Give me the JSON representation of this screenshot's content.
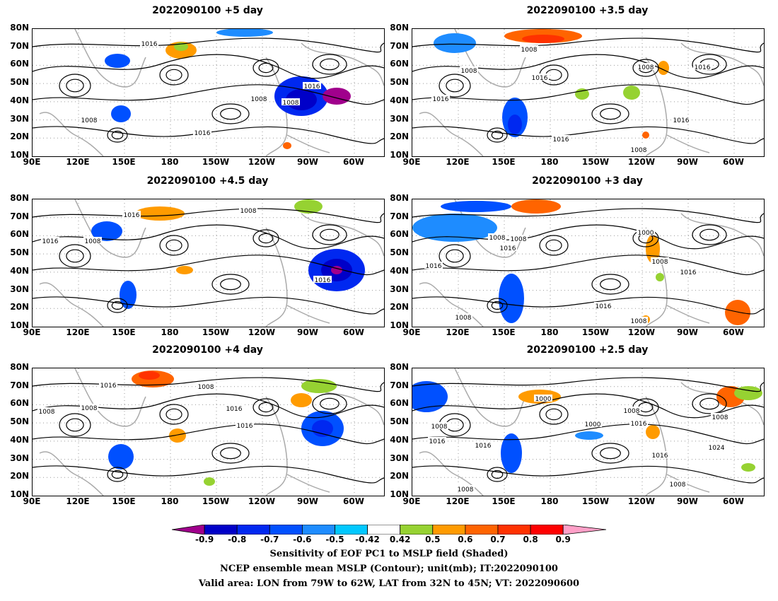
{
  "panels": [
    {
      "title": "2022090100 +5 day",
      "contour_labels": [
        "1016",
        "1008",
        "1008",
        "1016",
        "1016",
        "1008"
      ]
    },
    {
      "title": "2022090100 +3.5 day",
      "contour_labels": [
        "1008",
        "1008",
        "1016",
        "1008",
        "1016",
        "1016",
        "1016",
        "1016",
        "1008"
      ]
    },
    {
      "title": "2022090100 +4.5 day",
      "contour_labels": [
        "1016",
        "1008",
        "1008",
        "1016",
        "1016"
      ]
    },
    {
      "title": "2022090100 +3 day",
      "contour_labels": [
        "1008",
        "1016",
        "1000",
        "1016",
        "1008",
        "1008",
        "1016",
        "1016",
        "1008",
        "1008"
      ]
    },
    {
      "title": "2022090100 +4 day",
      "contour_labels": [
        "1016",
        "1008",
        "1008",
        "1008",
        "1016",
        "1016"
      ]
    },
    {
      "title": "2022090100 +2.5 day",
      "contour_labels": [
        "1000",
        "1008",
        "1000",
        "1016",
        "1008",
        "1016",
        "1008",
        "1016",
        "1024",
        "1016",
        "1008",
        "1008"
      ]
    }
  ],
  "lat_labels": [
    "80N",
    "70N",
    "60N",
    "50N",
    "40N",
    "30N",
    "20N",
    "10N"
  ],
  "lon_labels": [
    "90E",
    "120E",
    "150E",
    "180",
    "150W",
    "120W",
    "90W",
    "60W"
  ],
  "colorbar": {
    "ticks": [
      "-0.9",
      "-0.8",
      "-0.7",
      "-0.6",
      "-0.5",
      "-0.42",
      "0.42",
      "0.5",
      "0.6",
      "0.7",
      "0.8",
      "0.9"
    ],
    "colors": [
      "#a0008c",
      "#0000c8",
      "#0028f0",
      "#0050ff",
      "#1e8cff",
      "#00c8ff",
      "#ffffff",
      "#96d232",
      "#ff9b00",
      "#ff6400",
      "#ff3200",
      "#ff0000",
      "#ffa0c8"
    ]
  },
  "captions": {
    "line1": "Sensitivity of EOF PC1 to MSLP field (Shaded)",
    "line2": "NCEP ensemble mean MSLP (Contour); unit(mb); IT:2022090100",
    "line3": "Valid area: LON from 79W to 62W, LAT from 32N to 45N; VT: 2022090600"
  }
}
